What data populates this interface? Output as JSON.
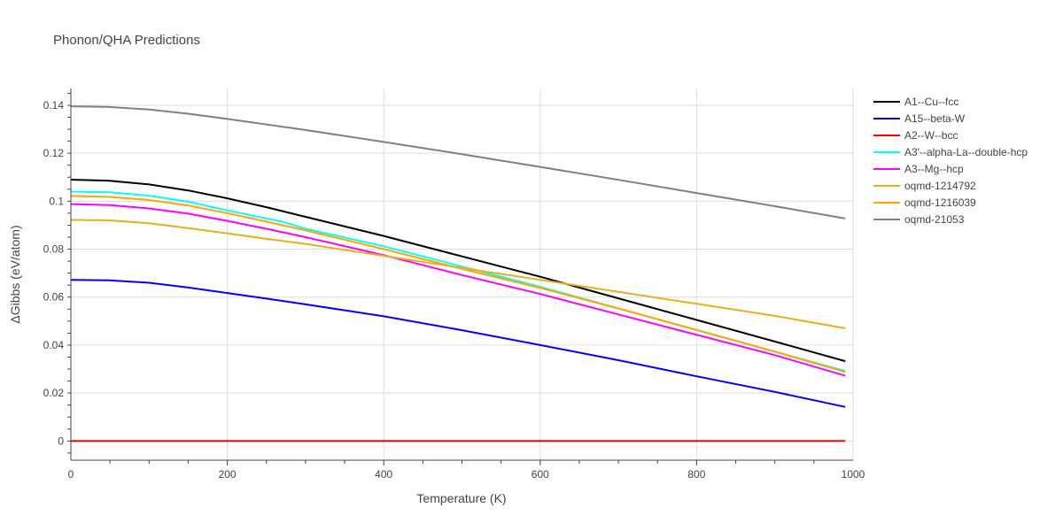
{
  "chart_data": {
    "type": "line",
    "title": "Phonon/QHA Predictions",
    "xlabel": "Temperature (K)",
    "ylabel": "ΔGibbs (eV/atom)",
    "xlim": [
      0,
      1000
    ],
    "ylim": [
      -0.008,
      0.147
    ],
    "xticks": [
      0,
      200,
      400,
      600,
      800,
      1000
    ],
    "xtick_labels": [
      "0",
      "200",
      "400",
      "600",
      "800",
      "1000"
    ],
    "yticks": [
      0,
      0.02,
      0.04,
      0.06,
      0.08,
      0.1,
      0.12,
      0.14
    ],
    "ytick_labels": [
      "0",
      "0.02",
      "0.04",
      "0.06",
      "0.08",
      "0.1",
      "0.12",
      "0.14"
    ],
    "grid": true,
    "legend_position": "right",
    "series": [
      {
        "name": "A1--Cu--fcc",
        "color": "#000000",
        "x": [
          0,
          50,
          100,
          150,
          200,
          250,
          300,
          400,
          500,
          600,
          700,
          800,
          900,
          990
        ],
        "y": [
          0.109,
          0.1085,
          0.107,
          0.1045,
          0.1012,
          0.0975,
          0.0935,
          0.0855,
          0.077,
          0.0685,
          0.0595,
          0.0505,
          0.0415,
          0.0333
        ]
      },
      {
        "name": "A15--beta-W",
        "color": "#0000ff",
        "x": [
          0,
          50,
          100,
          150,
          200,
          250,
          300,
          400,
          500,
          600,
          700,
          800,
          900,
          990
        ],
        "y": [
          0.0672,
          0.067,
          0.066,
          0.064,
          0.0617,
          0.0594,
          0.057,
          0.052,
          0.0462,
          0.04,
          0.0337,
          0.027,
          0.0205,
          0.0142
        ]
      },
      {
        "name": "A2--W--bcc",
        "color": "#ff0000",
        "x": [
          0,
          990
        ],
        "y": [
          0,
          0
        ]
      },
      {
        "name": "A3'--alpha-La--double-hcp",
        "color": "#00ffff",
        "x": [
          0,
          50,
          100,
          150,
          200,
          250,
          270,
          300,
          400,
          500,
          600,
          700,
          800,
          900,
          990
        ],
        "y": [
          0.104,
          0.1037,
          0.1023,
          0.0998,
          0.0962,
          0.0928,
          0.0915,
          0.0885,
          0.0812,
          0.0728,
          0.0643,
          0.0553,
          0.0463,
          0.0373,
          0.0292
        ]
      },
      {
        "name": "A3--Mg--hcp",
        "color": "#ff00ff",
        "x": [
          0,
          50,
          100,
          150,
          200,
          250,
          300,
          400,
          500,
          600,
          700,
          800,
          900,
          990
        ],
        "y": [
          0.0988,
          0.0984,
          0.097,
          0.0948,
          0.0918,
          0.0885,
          0.085,
          0.0775,
          0.0692,
          0.0613,
          0.0528,
          0.0443,
          0.0358,
          0.0272
        ]
      },
      {
        "name": "oqmd-1214792",
        "color": "#e6b020",
        "x": [
          0,
          50,
          100,
          150,
          200,
          250,
          300,
          400,
          500,
          600,
          700,
          800,
          900,
          990
        ],
        "y": [
          0.0922,
          0.092,
          0.0908,
          0.0888,
          0.0866,
          0.0843,
          0.0822,
          0.0772,
          0.0722,
          0.0672,
          0.0622,
          0.0572,
          0.0522,
          0.047
        ]
      },
      {
        "name": "oqmd-1216039",
        "color": "#ffa500",
        "x": [
          0,
          50,
          100,
          150,
          200,
          250,
          300,
          400,
          500,
          600,
          700,
          800,
          900,
          990
        ],
        "y": [
          0.1022,
          0.1018,
          0.1005,
          0.0982,
          0.095,
          0.0915,
          0.0878,
          0.08,
          0.0718,
          0.0638,
          0.0553,
          0.0463,
          0.0373,
          0.0288
        ]
      },
      {
        "name": "oqmd-21053",
        "color": "#808080",
        "x": [
          0,
          50,
          100,
          150,
          200,
          250,
          300,
          400,
          500,
          600,
          700,
          800,
          900,
          990
        ],
        "y": [
          0.1396,
          0.1393,
          0.1382,
          0.1365,
          0.1343,
          0.132,
          0.1297,
          0.1247,
          0.1196,
          0.1143,
          0.1089,
          0.1034,
          0.0979,
          0.0928
        ]
      }
    ]
  }
}
